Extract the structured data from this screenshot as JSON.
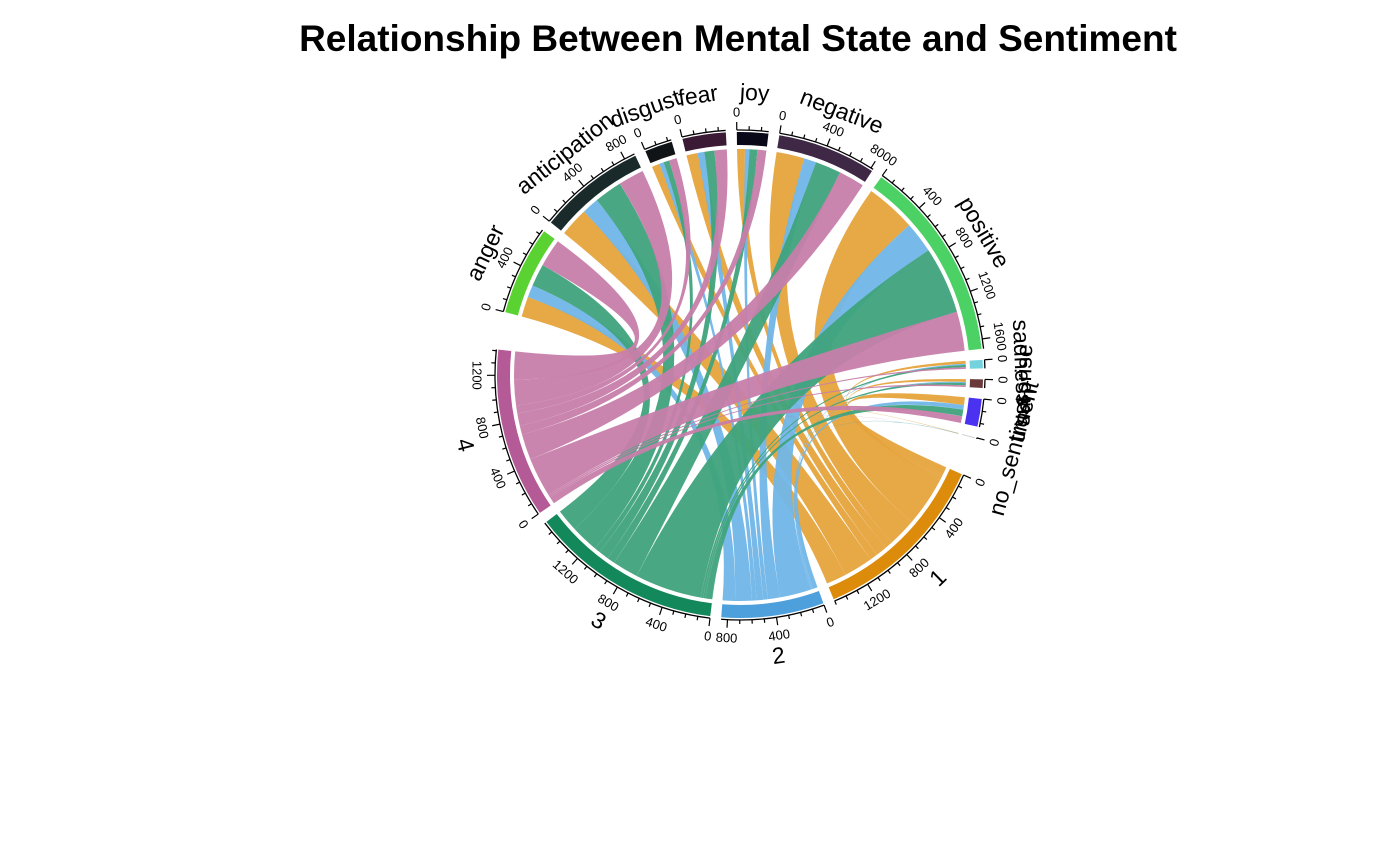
{
  "chart_data": {
    "type": "chord",
    "title": "Relationship Between Mental State and Sentiment",
    "sectors": [
      {
        "id": "anger",
        "label": "anger",
        "group": "sentiment",
        "color": "#5ad232"
      },
      {
        "id": "anticipation",
        "label": "anticipation",
        "group": "sentiment",
        "color": "#1a2a2a"
      },
      {
        "id": "disgust",
        "label": "disgust",
        "group": "sentiment",
        "color": "#111417"
      },
      {
        "id": "fear",
        "label": "fear",
        "group": "sentiment",
        "color": "#3a1a35"
      },
      {
        "id": "joy",
        "label": "joy",
        "group": "sentiment",
        "color": "#080818"
      },
      {
        "id": "negative",
        "label": "negative",
        "group": "sentiment",
        "color": "#3e2845"
      },
      {
        "id": "positive",
        "label": "positive",
        "group": "sentiment",
        "color": "#4cd264"
      },
      {
        "id": "sadness",
        "label": "sadness",
        "group": "sentiment",
        "color": "#73d2dc"
      },
      {
        "id": "surprise",
        "label": "surprise",
        "group": "sentiment",
        "color": "#6a3a3a"
      },
      {
        "id": "trust",
        "label": "trust",
        "group": "sentiment",
        "color": "#4a32f0"
      },
      {
        "id": "no_sentiment",
        "label": "no_sentiment",
        "group": "sentiment",
        "color": "#cccccc"
      },
      {
        "id": "1",
        "label": "1",
        "group": "state",
        "color": "#dc8c0a"
      },
      {
        "id": "2",
        "label": "2",
        "group": "state",
        "color": "#4ea0dc"
      },
      {
        "id": "3",
        "label": "3",
        "group": "state",
        "color": "#13885a"
      },
      {
        "id": "4",
        "label": "4",
        "group": "state",
        "color": "#b45a96"
      }
    ],
    "link_colors": {
      "1": "#e6a33c",
      "2": "#70b6e8",
      "3": "#3fa37c",
      "4": "#c77eaa"
    },
    "links": [
      {
        "from": "anger",
        "to": "1",
        "value": 180
      },
      {
        "from": "anger",
        "to": "2",
        "value": 110
      },
      {
        "from": "anger",
        "to": "3",
        "value": 200
      },
      {
        "from": "anger",
        "to": "4",
        "value": 250
      },
      {
        "from": "anticipation",
        "to": "1",
        "value": 260
      },
      {
        "from": "anticipation",
        "to": "2",
        "value": 150
      },
      {
        "from": "anticipation",
        "to": "3",
        "value": 250
      },
      {
        "from": "anticipation",
        "to": "4",
        "value": 230
      },
      {
        "from": "disgust",
        "to": "1",
        "value": 70
      },
      {
        "from": "disgust",
        "to": "2",
        "value": 40
      },
      {
        "from": "disgust",
        "to": "3",
        "value": 50
      },
      {
        "from": "disgust",
        "to": "4",
        "value": 70
      },
      {
        "from": "fear",
        "to": "1",
        "value": 100
      },
      {
        "from": "fear",
        "to": "2",
        "value": 60
      },
      {
        "from": "fear",
        "to": "3",
        "value": 90
      },
      {
        "from": "fear",
        "to": "4",
        "value": 110
      },
      {
        "from": "joy",
        "to": "1",
        "value": 70
      },
      {
        "from": "joy",
        "to": "2",
        "value": 40
      },
      {
        "from": "joy",
        "to": "3",
        "value": 70
      },
      {
        "from": "joy",
        "to": "4",
        "value": 80
      },
      {
        "from": "negative",
        "to": "1",
        "value": 250
      },
      {
        "from": "negative",
        "to": "2",
        "value": 110
      },
      {
        "from": "negative",
        "to": "3",
        "value": 230
      },
      {
        "from": "negative",
        "to": "4",
        "value": 230
      },
      {
        "from": "positive",
        "to": "1",
        "value": 450
      },
      {
        "from": "positive",
        "to": "2",
        "value": 280
      },
      {
        "from": "positive",
        "to": "3",
        "value": 600
      },
      {
        "from": "positive",
        "to": "4",
        "value": 350
      },
      {
        "from": "sadness",
        "to": "1",
        "value": 25
      },
      {
        "from": "sadness",
        "to": "2",
        "value": 10
      },
      {
        "from": "sadness",
        "to": "3",
        "value": 20
      },
      {
        "from": "sadness",
        "to": "4",
        "value": 15
      },
      {
        "from": "surprise",
        "to": "1",
        "value": 25
      },
      {
        "from": "surprise",
        "to": "2",
        "value": 10
      },
      {
        "from": "surprise",
        "to": "3",
        "value": 20
      },
      {
        "from": "surprise",
        "to": "4",
        "value": 15
      },
      {
        "from": "trust",
        "to": "1",
        "value": 70
      },
      {
        "from": "trust",
        "to": "2",
        "value": 40
      },
      {
        "from": "trust",
        "to": "3",
        "value": 60
      },
      {
        "from": "trust",
        "to": "4",
        "value": 60
      },
      {
        "from": "no_sentiment",
        "to": "1",
        "value": 3
      },
      {
        "from": "no_sentiment",
        "to": "2",
        "value": 2
      },
      {
        "from": "no_sentiment",
        "to": "3",
        "value": 2
      },
      {
        "from": "no_sentiment",
        "to": "4",
        "value": 1
      }
    ],
    "tick_step": 100,
    "tick_label_step": 400,
    "legend": "none"
  }
}
